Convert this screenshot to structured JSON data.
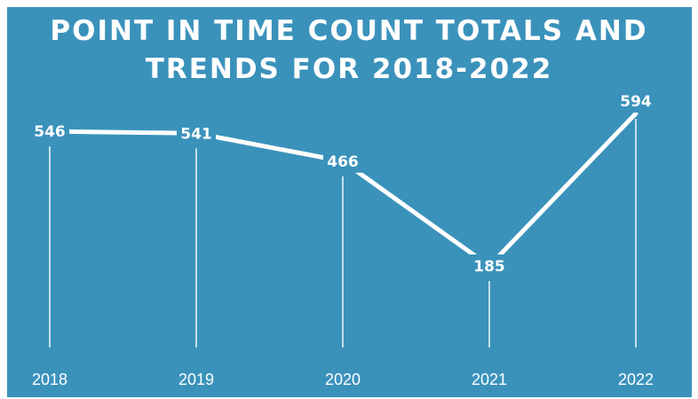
{
  "chart_data": {
    "type": "line",
    "title_lines": [
      "POINT IN TIME COUNT TOTALS AND",
      "TRENDS FOR 2018-2022"
    ],
    "categories": [
      "2018",
      "2019",
      "2020",
      "2021",
      "2022"
    ],
    "values": [
      546,
      541,
      466,
      185,
      594
    ],
    "data_labels": [
      "546",
      "541",
      "466",
      "185",
      "594"
    ],
    "xlabel": "",
    "ylabel": "",
    "y_axis_visible": false,
    "grid": false,
    "drop_lines": true,
    "legend": "none",
    "colors": {
      "background": "#3a92bb",
      "line": "#ffffff",
      "text": "#ffffff",
      "drop_line": "#e6f2f8"
    }
  }
}
